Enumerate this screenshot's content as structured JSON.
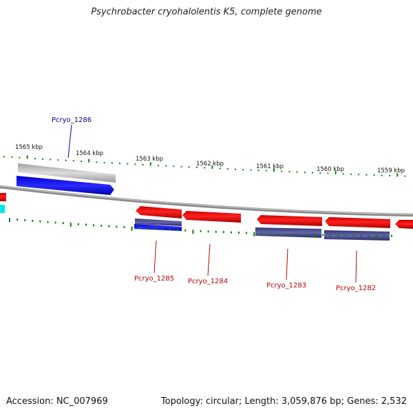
{
  "title": "Psychrobacter cryohalolentis K5, complete genome",
  "accession_text": "Accession: NC_007969",
  "summary_text": "Topology: circular; Length: 3,059,876 bp; Genes: 2,532",
  "colors": {
    "forward_gene": "#0000ee",
    "reverse_gene": "#ee0000",
    "forward_label": "#000088",
    "reverse_label": "#bb0000",
    "tick": "#008800",
    "backbone": "#888888",
    "cds_grey": "#bbbbbb",
    "cds_navy": "#444488",
    "edge_cyan": "#00eeee"
  },
  "ticks": [
    {
      "label": "1565 kbp"
    },
    {
      "label": "1564 kbp"
    },
    {
      "label": "1563 kbp"
    },
    {
      "label": "1562 kbp"
    },
    {
      "label": "1561 kbp"
    },
    {
      "label": "1560 kbp"
    },
    {
      "label": "1559 kbp"
    }
  ],
  "genes": [
    {
      "name": "Pcryo_1286",
      "strand": "forward"
    },
    {
      "name": "Pcryo_1285",
      "strand": "reverse"
    },
    {
      "name": "Pcryo_1284",
      "strand": "reverse"
    },
    {
      "name": "Pcryo_1283",
      "strand": "reverse"
    },
    {
      "name": "Pcryo_1282",
      "strand": "reverse"
    }
  ]
}
